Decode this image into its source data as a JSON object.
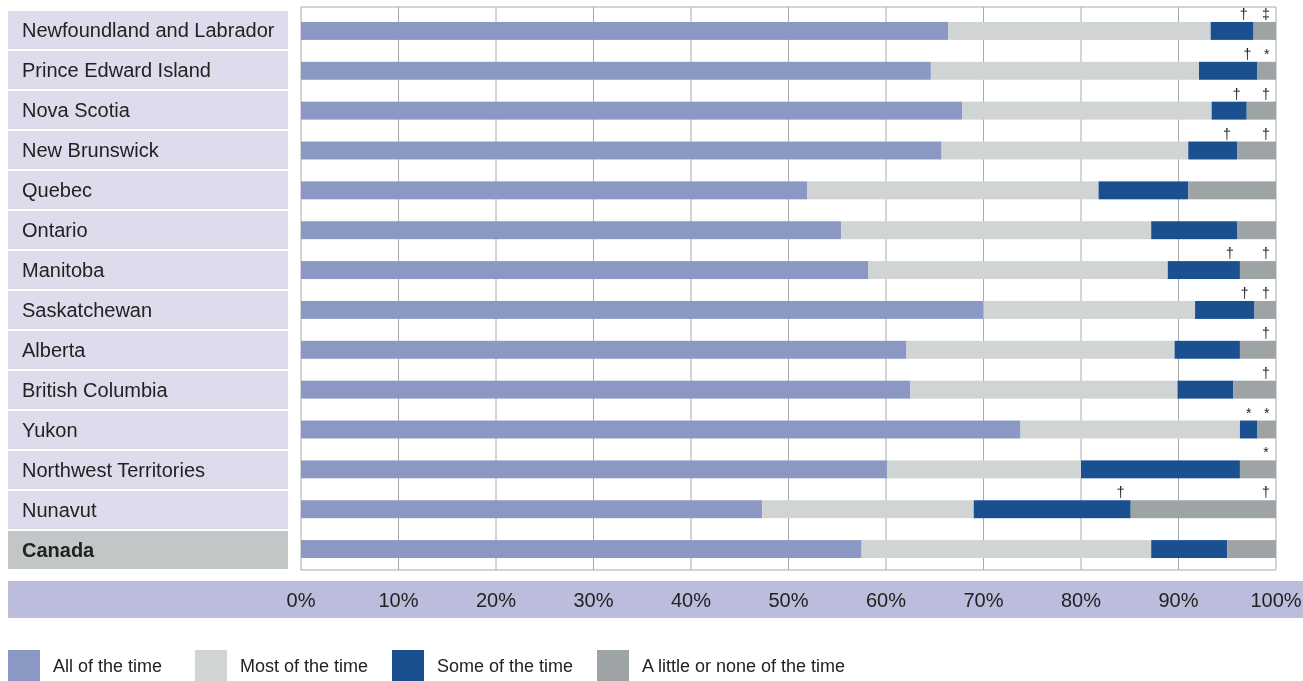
{
  "chart_data": {
    "type": "bar",
    "orientation": "horizontal",
    "stacked": true,
    "categories": [
      "Newfoundland and Labrador",
      "Prince Edward Island",
      "Nova Scotia",
      "New Brunswick",
      "Quebec",
      "Ontario",
      "Manitoba",
      "Saskatchewan",
      "Alberta",
      "British Columbia",
      "Yukon",
      "Northwest Territories",
      "Nunavut",
      "Canada"
    ],
    "series": [
      {
        "name": "All of the time",
        "color": "#8c98c4",
        "values": [
          66.4,
          64.6,
          67.8,
          65.7,
          51.9,
          55.4,
          58.2,
          70.0,
          62.1,
          62.5,
          73.8,
          60.1,
          47.3,
          57.5
        ]
      },
      {
        "name": "Most of the time",
        "color": "#d1d4d4",
        "values": [
          26.9,
          27.5,
          25.6,
          25.3,
          29.9,
          31.8,
          30.7,
          21.7,
          27.5,
          27.4,
          22.5,
          19.9,
          21.7,
          29.7
        ]
      },
      {
        "name": "Some of the time",
        "color": "#1a5090",
        "values": [
          4.4,
          6.0,
          3.6,
          5.0,
          9.2,
          8.8,
          7.4,
          6.1,
          6.7,
          5.7,
          1.8,
          16.3,
          16.1,
          7.8
        ]
      },
      {
        "name": "A little or none of the time",
        "color": "#9ea3a5",
        "values": [
          2.3,
          1.9,
          3.0,
          4.0,
          9.0,
          4.0,
          3.7,
          2.2,
          3.7,
          4.4,
          1.9,
          3.7,
          14.9,
          5.0
        ]
      }
    ],
    "xlim": [
      0,
      100
    ],
    "xticks": [
      {
        "value": 0,
        "label": "0%"
      },
      {
        "value": 10,
        "label": "10%"
      },
      {
        "value": 20,
        "label": "20%"
      },
      {
        "value": 30,
        "label": "30%"
      },
      {
        "value": 40,
        "label": "40%"
      },
      {
        "value": 50,
        "label": "50%"
      },
      {
        "value": 60,
        "label": "60%"
      },
      {
        "value": 70,
        "label": "70%"
      },
      {
        "value": 80,
        "label": "80%"
      },
      {
        "value": 90,
        "label": "90%"
      },
      {
        "value": 100,
        "label": "100%"
      }
    ],
    "grid": "x",
    "legend": "bottom",
    "annotations": [
      {
        "text": "†",
        "x": 97.7,
        "y": "Newfoundland and Labrador"
      },
      {
        "text": "‡",
        "x": 100.0,
        "y": "Newfoundland and Labrador"
      },
      {
        "text": "†",
        "x": 98.1,
        "y": "Prince Edward Island"
      },
      {
        "text": "*",
        "x": 100.0,
        "y": "Prince Edward Island"
      },
      {
        "text": "†",
        "x": 97.0,
        "y": "Nova Scotia"
      },
      {
        "text": "†",
        "x": 100.0,
        "y": "Nova Scotia"
      },
      {
        "text": "†",
        "x": 96.0,
        "y": "New Brunswick"
      },
      {
        "text": "†",
        "x": 100.0,
        "y": "New Brunswick"
      },
      {
        "text": "†",
        "x": 96.3,
        "y": "Manitoba"
      },
      {
        "text": "†",
        "x": 100.0,
        "y": "Manitoba"
      },
      {
        "text": "†",
        "x": 97.8,
        "y": "Saskatchewan"
      },
      {
        "text": "†",
        "x": 100.0,
        "y": "Saskatchewan"
      },
      {
        "text": "†",
        "x": 100.0,
        "y": "Alberta"
      },
      {
        "text": "†",
        "x": 100.0,
        "y": "British Columbia"
      },
      {
        "text": "*",
        "x": 98.1,
        "y": "Yukon"
      },
      {
        "text": "*",
        "x": 100.0,
        "y": "Yukon"
      },
      {
        "text": "*",
        "x": 100.0,
        "y": "Northwest Territories"
      },
      {
        "text": "†",
        "x": 85.1,
        "y": "Nunavut"
      },
      {
        "text": "†",
        "x": 100.0,
        "y": "Nunavut"
      }
    ]
  }
}
